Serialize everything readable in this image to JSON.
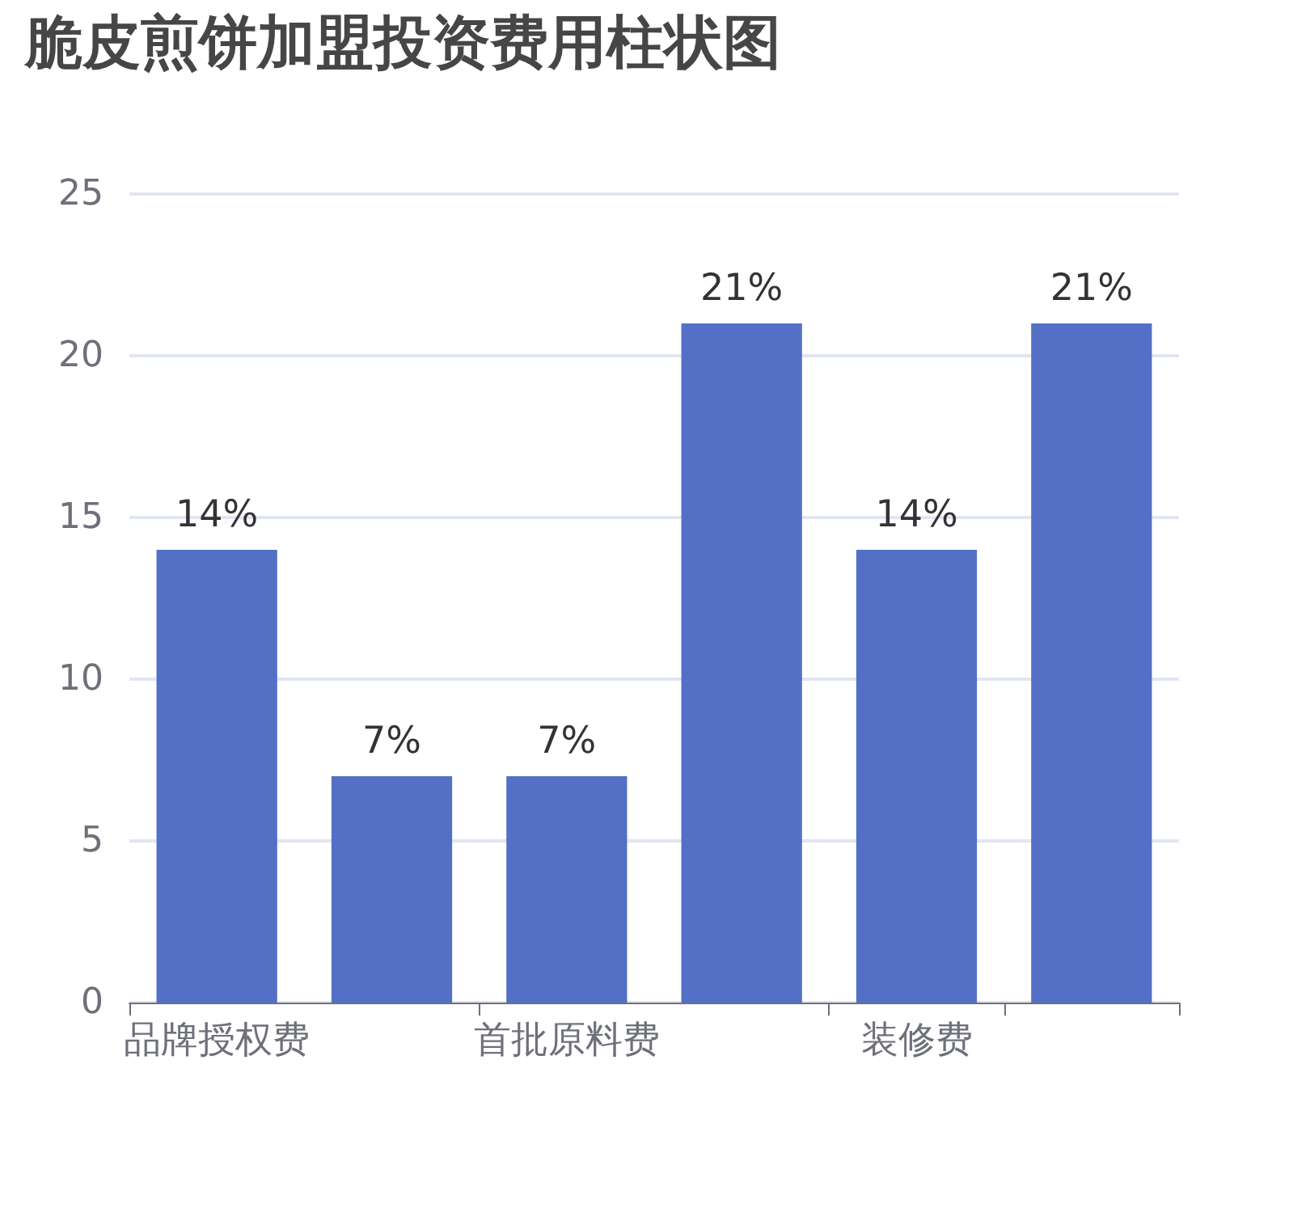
{
  "chart_data": {
    "type": "bar",
    "title": "脆皮煎饼加盟投资费用柱状图",
    "categories": [
      "品牌授权费",
      null,
      "首批原料费",
      null,
      "装修费",
      null
    ],
    "values": [
      14,
      7,
      7,
      21,
      14,
      21
    ],
    "value_labels": [
      "14%",
      "7%",
      "7%",
      "21%",
      "14%",
      "21%"
    ],
    "color": "#5470c6",
    "ylim": [
      0,
      25
    ],
    "yticks": [
      0,
      5,
      10,
      15,
      20,
      25
    ],
    "grid": "y"
  }
}
